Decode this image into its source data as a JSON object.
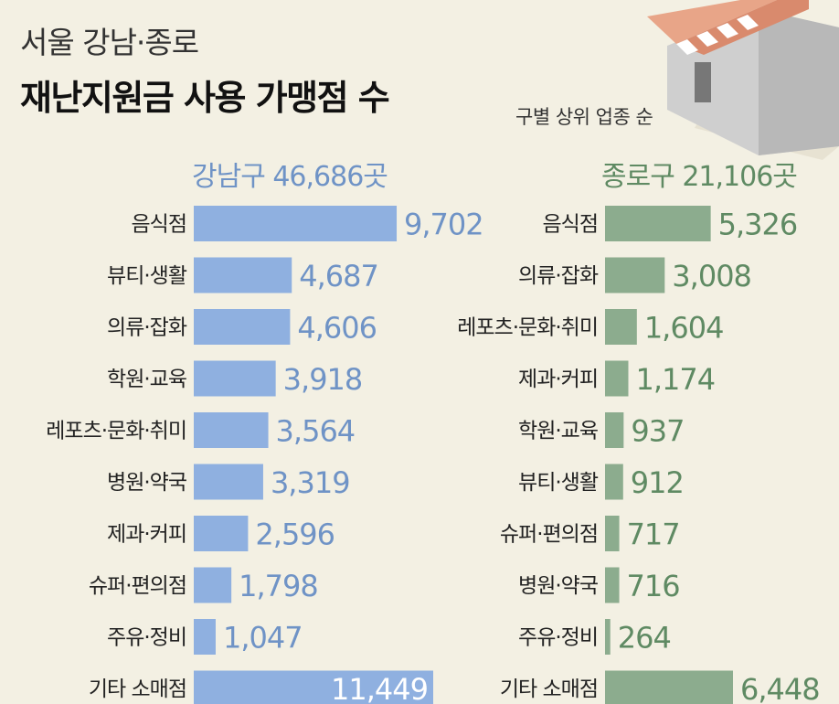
{
  "header": {
    "title_line1": "서울 강남·종로",
    "title_line2": "재난지원금 사용 가맹점 수",
    "subtitle": "구별 상위 업종 순"
  },
  "colors": {
    "gangnam_bar": "#8fb0e0",
    "gangnam_text": "#6f93c6",
    "jongno_bar": "#8cac8e",
    "jongno_text": "#5f8a63",
    "background": "#f3f0e3"
  },
  "chart_data": [
    {
      "type": "bar",
      "orientation": "horizontal",
      "title": "강남구 46,686곳",
      "categories": [
        "음식점",
        "뷰티·생활",
        "의류·잡화",
        "학원·교육",
        "레포츠·문화·취미",
        "병원·약국",
        "제과·커피",
        "슈퍼·편의점",
        "주유·정비",
        "기타 소매점"
      ],
      "values": [
        9702,
        4687,
        4606,
        3918,
        3564,
        3319,
        2596,
        1798,
        1047,
        11449
      ],
      "labels": [
        "9,702",
        "4,687",
        "4,606",
        "3,918",
        "3,564",
        "3,319",
        "2,596",
        "1,798",
        "1,047",
        "11,449"
      ]
    },
    {
      "type": "bar",
      "orientation": "horizontal",
      "title": "종로구 21,106곳",
      "categories": [
        "음식점",
        "의류·잡화",
        "레포츠·문화·취미",
        "제과·커피",
        "학원·교육",
        "뷰티·생활",
        "슈퍼·편의점",
        "병원·약국",
        "주유·정비",
        "기타 소매점"
      ],
      "values": [
        5326,
        3008,
        1604,
        1174,
        937,
        912,
        717,
        716,
        264,
        6448
      ],
      "labels": [
        "5,326",
        "3,008",
        "1,604",
        "1,174",
        "937",
        "912",
        "717",
        "716",
        "264",
        "6,448"
      ]
    }
  ]
}
